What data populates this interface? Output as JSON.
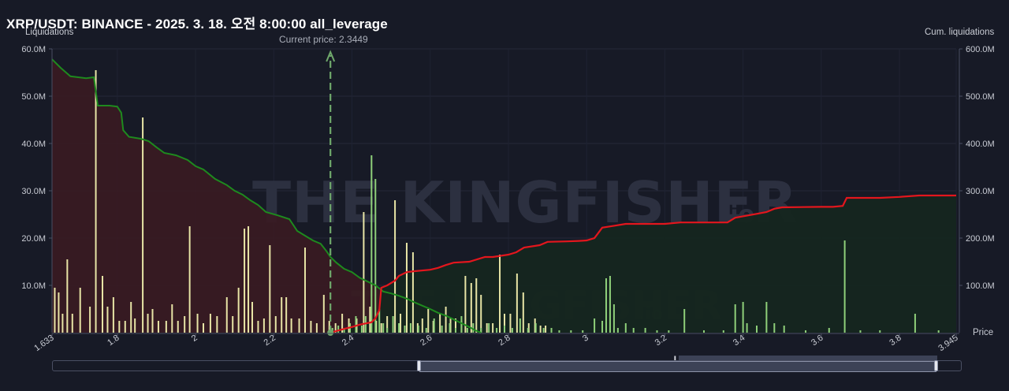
{
  "header": {
    "title": "XRP/USDT: BINANCE - 2025. 3. 18. 오전 8:00:00 all_leverage",
    "left_axis_caption": "Liquidations",
    "right_axis_caption": "Cum. liquidations",
    "price_axis_caption": "Price",
    "current_price_label": "Current price: 2.3449"
  },
  "watermark": {
    "text": "THE KINGFISHER",
    "suffix": ".io"
  },
  "colors": {
    "background": "#171a26",
    "short_cum_line": "#1e8a1e",
    "long_cum_line": "#e3161d",
    "short_fill": "#3a1b22",
    "long_fill": "#15261f",
    "bars_left": "#e8e5a6",
    "bars_right": "#8fd07a",
    "current_price_marker": "#6fa86b"
  },
  "chart_data": {
    "type": "bar",
    "title": "XRP/USDT: BINANCE - 2025. 3. 18. 오전 8:00:00 all_leverage",
    "xlabel": "Price",
    "ylabel": "Liquidations",
    "y2label": "Cum. liquidations",
    "xlim": [
      1.633,
      3.945
    ],
    "ylim": [
      0,
      60000000
    ],
    "y2lim": [
      0,
      600000000
    ],
    "x_ticks": [
      "1.633",
      "1.8",
      "2",
      "2.2",
      "2.4",
      "2.6",
      "2.8",
      "3",
      "3.2",
      "3.4",
      "3.6",
      "3.8",
      "3.945"
    ],
    "y_ticks": [
      "10.0M",
      "20.0M",
      "30.0M",
      "40.0M",
      "50.0M",
      "60.0M"
    ],
    "y2_ticks": [
      "100.0M",
      "200.0M",
      "300.0M",
      "400.0M",
      "500.0M",
      "600.0M"
    ],
    "current_price": 2.3449,
    "grid": true,
    "series": [
      {
        "kind": "bars",
        "side": "below_current",
        "points": [
          [
            1.64,
            9.5
          ],
          [
            1.65,
            8.5
          ],
          [
            1.66,
            4
          ],
          [
            1.672,
            15.5
          ],
          [
            1.685,
            4
          ],
          [
            1.705,
            9.5
          ],
          [
            1.73,
            5.5
          ],
          [
            1.745,
            55.5
          ],
          [
            1.762,
            12
          ],
          [
            1.775,
            5.5
          ],
          [
            1.79,
            7.5
          ],
          [
            1.805,
            2.5
          ],
          [
            1.82,
            2.5
          ],
          [
            1.835,
            6.5
          ],
          [
            1.845,
            3
          ],
          [
            1.865,
            45.5
          ],
          [
            1.878,
            4
          ],
          [
            1.89,
            5
          ],
          [
            1.905,
            2.5
          ],
          [
            1.925,
            2.5
          ],
          [
            1.94,
            6
          ],
          [
            1.955,
            2.5
          ],
          [
            1.972,
            3.5
          ],
          [
            1.985,
            22.5
          ],
          [
            2.005,
            4
          ],
          [
            2.02,
            2
          ],
          [
            2.038,
            4
          ],
          [
            2.055,
            3.5
          ],
          [
            2.08,
            7.5
          ],
          [
            2.095,
            3.5
          ],
          [
            2.11,
            9.5
          ],
          [
            2.125,
            22
          ],
          [
            2.135,
            22.5
          ],
          [
            2.145,
            6.5
          ],
          [
            2.16,
            2.5
          ],
          [
            2.175,
            3
          ],
          [
            2.19,
            18.5
          ],
          [
            2.205,
            3.5
          ],
          [
            2.22,
            7.5
          ],
          [
            2.232,
            7.5
          ],
          [
            2.245,
            3
          ],
          [
            2.265,
            3
          ],
          [
            2.28,
            18
          ],
          [
            2.295,
            2.5
          ],
          [
            2.31,
            2
          ],
          [
            2.328,
            8
          ],
          [
            2.342,
            2.5
          ],
          [
            2.358,
            2
          ],
          [
            2.375,
            4
          ],
          [
            2.392,
            3
          ],
          [
            2.412,
            3
          ],
          [
            2.43,
            25.5
          ],
          [
            2.446,
            5.5
          ],
          [
            2.462,
            2.5
          ],
          [
            2.475,
            2
          ],
          [
            2.49,
            3.5
          ],
          [
            2.51,
            28
          ],
          [
            2.524,
            4
          ],
          [
            2.54,
            19
          ],
          [
            2.556,
            17
          ],
          [
            2.568,
            2
          ],
          [
            2.58,
            3
          ],
          [
            2.595,
            5
          ],
          [
            2.608,
            2.5
          ],
          [
            2.625,
            4
          ],
          [
            2.64,
            5.5
          ],
          [
            2.652,
            3
          ],
          [
            2.665,
            3
          ],
          [
            2.68,
            2.5
          ],
          [
            2.69,
            12
          ],
          [
            2.705,
            10.5
          ],
          [
            2.718,
            11.5
          ],
          [
            2.73,
            8
          ],
          [
            2.745,
            2
          ],
          [
            2.76,
            2
          ],
          [
            2.778,
            16.5
          ],
          [
            2.79,
            4
          ],
          [
            2.805,
            4
          ],
          [
            2.822,
            12.5
          ],
          [
            2.838,
            8.5
          ],
          [
            2.852,
            2
          ],
          [
            2.868,
            3
          ],
          [
            2.882,
            1.5
          ],
          [
            2.895,
            1.5
          ]
        ],
        "color": "#e8e5a6"
      },
      {
        "kind": "bars",
        "side": "above_current",
        "points": [
          [
            2.35,
            1
          ],
          [
            2.365,
            1.5
          ],
          [
            2.38,
            1
          ],
          [
            2.395,
            2
          ],
          [
            2.41,
            3.5
          ],
          [
            2.425,
            1.5
          ],
          [
            2.435,
            3.5
          ],
          [
            2.45,
            37.5
          ],
          [
            2.46,
            32.5
          ],
          [
            2.47,
            5
          ],
          [
            2.48,
            2
          ],
          [
            2.49,
            1
          ],
          [
            2.505,
            3.5
          ],
          [
            2.52,
            2
          ],
          [
            2.535,
            1.5
          ],
          [
            2.55,
            2
          ],
          [
            2.57,
            1.5
          ],
          [
            2.59,
            1
          ],
          [
            2.61,
            3
          ],
          [
            2.63,
            1.5
          ],
          [
            2.65,
            2
          ],
          [
            2.665,
            1
          ],
          [
            2.68,
            3.5
          ],
          [
            2.695,
            1
          ],
          [
            2.71,
            2
          ],
          [
            2.73,
            1
          ],
          [
            2.75,
            2
          ],
          [
            2.77,
            1
          ],
          [
            2.79,
            1.5
          ],
          [
            2.81,
            1
          ],
          [
            2.83,
            3
          ],
          [
            2.85,
            1
          ],
          [
            2.87,
            2
          ],
          [
            2.89,
            1
          ],
          [
            2.91,
            1
          ],
          [
            2.93,
            0.5
          ],
          [
            2.96,
            0.5
          ],
          [
            2.99,
            0.5
          ],
          [
            3.02,
            3
          ],
          [
            3.04,
            2.5
          ],
          [
            3.05,
            11.5
          ],
          [
            3.06,
            12
          ],
          [
            3.07,
            6
          ],
          [
            3.08,
            1
          ],
          [
            3.1,
            2
          ],
          [
            3.12,
            1
          ],
          [
            3.15,
            1
          ],
          [
            3.18,
            0.5
          ],
          [
            3.21,
            0.5
          ],
          [
            3.25,
            5
          ],
          [
            3.3,
            0.5
          ],
          [
            3.35,
            0.5
          ],
          [
            3.38,
            6
          ],
          [
            3.4,
            6.5
          ],
          [
            3.41,
            2
          ],
          [
            3.435,
            1.5
          ],
          [
            3.46,
            6.5
          ],
          [
            3.48,
            2
          ],
          [
            3.505,
            1.5
          ],
          [
            3.56,
            0.5
          ],
          [
            3.62,
            1
          ],
          [
            3.66,
            19.5
          ],
          [
            3.7,
            0.5
          ],
          [
            3.75,
            0.5
          ],
          [
            3.84,
            4
          ],
          [
            3.9,
            0.5
          ]
        ],
        "color": "#8fd07a"
      },
      {
        "kind": "line",
        "axis": "y2",
        "side": "below_current",
        "points": [
          [
            1.633,
            578
          ],
          [
            1.655,
            560
          ],
          [
            1.68,
            542
          ],
          [
            1.7,
            540
          ],
          [
            1.72,
            538
          ],
          [
            1.74,
            540
          ],
          [
            1.75,
            480
          ],
          [
            1.78,
            480
          ],
          [
            1.8,
            478
          ],
          [
            1.81,
            465
          ],
          [
            1.815,
            428
          ],
          [
            1.83,
            414
          ],
          [
            1.86,
            410
          ],
          [
            1.88,
            405
          ],
          [
            1.9,
            392
          ],
          [
            1.92,
            380
          ],
          [
            1.95,
            375
          ],
          [
            1.98,
            365
          ],
          [
            2.0,
            352
          ],
          [
            2.02,
            345
          ],
          [
            2.05,
            325
          ],
          [
            2.08,
            312
          ],
          [
            2.1,
            300
          ],
          [
            2.12,
            292
          ],
          [
            2.14,
            280
          ],
          [
            2.16,
            270
          ],
          [
            2.18,
            255
          ],
          [
            2.21,
            248
          ],
          [
            2.24,
            240
          ],
          [
            2.26,
            215
          ],
          [
            2.28,
            205
          ],
          [
            2.3,
            195
          ],
          [
            2.32,
            188
          ],
          [
            2.335,
            172
          ],
          [
            2.345,
            160
          ],
          [
            2.36,
            148
          ],
          [
            2.38,
            135
          ],
          [
            2.4,
            128
          ],
          [
            2.42,
            116
          ],
          [
            2.44,
            108
          ],
          [
            2.46,
            100
          ],
          [
            2.48,
            87
          ],
          [
            2.5,
            83
          ],
          [
            2.52,
            78
          ],
          [
            2.54,
            72
          ],
          [
            2.56,
            64
          ],
          [
            2.58,
            57
          ],
          [
            2.6,
            50
          ],
          [
            2.62,
            42
          ],
          [
            2.64,
            36
          ],
          [
            2.66,
            28
          ],
          [
            2.68,
            20
          ],
          [
            2.7,
            12
          ],
          [
            2.715,
            5
          ],
          [
            2.73,
            0
          ]
        ],
        "color": "#1e8a1e"
      },
      {
        "kind": "line",
        "axis": "y2",
        "side": "above_current",
        "points": [
          [
            2.3449,
            0
          ],
          [
            2.38,
            8
          ],
          [
            2.4,
            12
          ],
          [
            2.42,
            17
          ],
          [
            2.45,
            22
          ],
          [
            2.46,
            30
          ],
          [
            2.47,
            48
          ],
          [
            2.475,
            95
          ],
          [
            2.49,
            100
          ],
          [
            2.51,
            110
          ],
          [
            2.52,
            120
          ],
          [
            2.54,
            128
          ],
          [
            2.56,
            130
          ],
          [
            2.6,
            133
          ],
          [
            2.62,
            137
          ],
          [
            2.64,
            143
          ],
          [
            2.66,
            148
          ],
          [
            2.7,
            150
          ],
          [
            2.74,
            160
          ],
          [
            2.76,
            160
          ],
          [
            2.8,
            165
          ],
          [
            2.82,
            170
          ],
          [
            2.84,
            180
          ],
          [
            2.88,
            185
          ],
          [
            2.9,
            192
          ],
          [
            2.95,
            193
          ],
          [
            2.98,
            194
          ],
          [
            3.0,
            195
          ],
          [
            3.02,
            200
          ],
          [
            3.04,
            222
          ],
          [
            3.07,
            226
          ],
          [
            3.1,
            230
          ],
          [
            3.2,
            230
          ],
          [
            3.24,
            233
          ],
          [
            3.3,
            233
          ],
          [
            3.36,
            233
          ],
          [
            3.38,
            243
          ],
          [
            3.44,
            252
          ],
          [
            3.46,
            255
          ],
          [
            3.48,
            262
          ],
          [
            3.5,
            265
          ],
          [
            3.6,
            266
          ],
          [
            3.63,
            266
          ],
          [
            3.655,
            268
          ],
          [
            3.665,
            285
          ],
          [
            3.7,
            285
          ],
          [
            3.75,
            285
          ],
          [
            3.8,
            287
          ],
          [
            3.85,
            290
          ],
          [
            3.945,
            290
          ]
        ],
        "color": "#e3161d"
      }
    ]
  },
  "navigator": {
    "grip_label": "lll"
  }
}
